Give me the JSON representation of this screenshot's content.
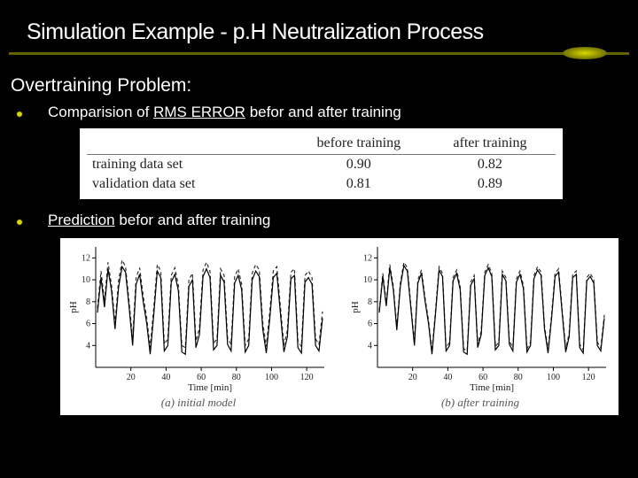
{
  "title": "Simulation Example - p.H Neutralization Process",
  "underline": {
    "color": "#636300",
    "ball_gradient_inner": "#d8d800",
    "ball_gradient_outer": "#717100"
  },
  "section_heading": "Overtraining Problem:",
  "bullets": [
    {
      "pre": "Comparision of ",
      "rms": "RMS ERROR",
      "post": " befor and after training"
    },
    {
      "pre": "",
      "rms": "Prediction",
      "post": " befor and after training"
    }
  ],
  "table": {
    "columns": [
      "",
      "before training",
      "after training"
    ],
    "rows": [
      {
        "label": "training data set",
        "before": "0.90",
        "after": "0.82"
      },
      {
        "label": "validation data set",
        "before": "0.81",
        "after": "0.89"
      }
    ],
    "font_family": "Times New Roman",
    "font_size_pt": 12,
    "text_color": "#222222",
    "bg_color": "#ffffff",
    "border_color": "#777777"
  },
  "charts": {
    "type": "line",
    "background_color": "#ffffff",
    "axis_color": "#000000",
    "xlabel": "Time [min]",
    "ylabel": "pH",
    "label_fontsize_pt": 11,
    "tick_fontsize_pt": 10,
    "xlim": [
      0,
      130
    ],
    "ylim": [
      2,
      13
    ],
    "xticks": [
      20,
      40,
      60,
      80,
      100,
      120
    ],
    "yticks": [
      4,
      6,
      8,
      10,
      12
    ],
    "line_color_solid": "#000000",
    "line_color_dashed": "#333333",
    "line_width": 1.2,
    "panels": [
      {
        "caption": "(a) initial model",
        "solid": [
          [
            1,
            7.0
          ],
          [
            3,
            10.2
          ],
          [
            5,
            7.5
          ],
          [
            7,
            11.0
          ],
          [
            9,
            9.0
          ],
          [
            11,
            5.5
          ],
          [
            13,
            9.3
          ],
          [
            15,
            11.2
          ],
          [
            17,
            10.7
          ],
          [
            19,
            7.5
          ],
          [
            21,
            4.0
          ],
          [
            23,
            9.6
          ],
          [
            25,
            10.5
          ],
          [
            27,
            8.0
          ],
          [
            29,
            6.0
          ],
          [
            31,
            3.2
          ],
          [
            33,
            6.8
          ],
          [
            35,
            10.8
          ],
          [
            37,
            10.2
          ],
          [
            39,
            3.5
          ],
          [
            41,
            4.0
          ],
          [
            43,
            9.8
          ],
          [
            45,
            10.5
          ],
          [
            47,
            9.0
          ],
          [
            49,
            3.4
          ],
          [
            51,
            3.2
          ],
          [
            53,
            9.4
          ],
          [
            55,
            10.0
          ],
          [
            57,
            3.8
          ],
          [
            59,
            5.0
          ],
          [
            61,
            10.3
          ],
          [
            63,
            11.0
          ],
          [
            65,
            10.2
          ],
          [
            67,
            3.6
          ],
          [
            69,
            4.0
          ],
          [
            71,
            10.4
          ],
          [
            73,
            9.8
          ],
          [
            75,
            4.1
          ],
          [
            77,
            3.5
          ],
          [
            79,
            9.7
          ],
          [
            81,
            10.4
          ],
          [
            83,
            9.1
          ],
          [
            85,
            3.4
          ],
          [
            87,
            4.0
          ],
          [
            89,
            10.0
          ],
          [
            91,
            10.8
          ],
          [
            93,
            10.3
          ],
          [
            95,
            5.5
          ],
          [
            97,
            3.3
          ],
          [
            99,
            6.5
          ],
          [
            101,
            10.2
          ],
          [
            103,
            10.6
          ],
          [
            105,
            7.0
          ],
          [
            107,
            3.4
          ],
          [
            109,
            4.8
          ],
          [
            111,
            10.1
          ],
          [
            113,
            10.4
          ],
          [
            115,
            3.8
          ],
          [
            117,
            3.3
          ],
          [
            119,
            9.8
          ],
          [
            121,
            10.2
          ],
          [
            123,
            9.6
          ],
          [
            125,
            4.0
          ],
          [
            127,
            3.5
          ],
          [
            129,
            6.5
          ]
        ],
        "dashed": [
          [
            1,
            7.4
          ],
          [
            3,
            10.8
          ],
          [
            5,
            8.0
          ],
          [
            7,
            11.6
          ],
          [
            9,
            9.5
          ],
          [
            11,
            6.0
          ],
          [
            13,
            9.9
          ],
          [
            15,
            11.8
          ],
          [
            17,
            11.2
          ],
          [
            19,
            8.0
          ],
          [
            21,
            4.6
          ],
          [
            23,
            10.2
          ],
          [
            25,
            11.1
          ],
          [
            27,
            8.5
          ],
          [
            29,
            6.5
          ],
          [
            31,
            3.8
          ],
          [
            33,
            7.4
          ],
          [
            35,
            11.4
          ],
          [
            37,
            10.8
          ],
          [
            39,
            4.1
          ],
          [
            41,
            4.6
          ],
          [
            43,
            10.4
          ],
          [
            45,
            11.1
          ],
          [
            47,
            9.5
          ],
          [
            49,
            4.0
          ],
          [
            51,
            3.8
          ],
          [
            53,
            10.0
          ],
          [
            55,
            10.6
          ],
          [
            57,
            4.4
          ],
          [
            59,
            5.6
          ],
          [
            61,
            10.9
          ],
          [
            63,
            11.6
          ],
          [
            65,
            10.8
          ],
          [
            67,
            4.2
          ],
          [
            69,
            4.6
          ],
          [
            71,
            11.0
          ],
          [
            73,
            10.4
          ],
          [
            75,
            4.7
          ],
          [
            77,
            4.1
          ],
          [
            79,
            10.3
          ],
          [
            81,
            11.0
          ],
          [
            83,
            9.6
          ],
          [
            85,
            4.0
          ],
          [
            87,
            4.6
          ],
          [
            89,
            10.6
          ],
          [
            91,
            11.4
          ],
          [
            93,
            10.9
          ],
          [
            95,
            6.1
          ],
          [
            97,
            3.9
          ],
          [
            99,
            7.1
          ],
          [
            101,
            10.8
          ],
          [
            103,
            11.2
          ],
          [
            105,
            7.6
          ],
          [
            107,
            4.0
          ],
          [
            109,
            5.4
          ],
          [
            111,
            10.7
          ],
          [
            113,
            11.0
          ],
          [
            115,
            4.4
          ],
          [
            117,
            3.9
          ],
          [
            119,
            10.4
          ],
          [
            121,
            10.8
          ],
          [
            123,
            10.2
          ],
          [
            125,
            4.6
          ],
          [
            127,
            4.1
          ],
          [
            129,
            7.1
          ]
        ]
      },
      {
        "caption": "(b) after training",
        "solid": [
          [
            1,
            7.0
          ],
          [
            3,
            10.3
          ],
          [
            5,
            7.6
          ],
          [
            7,
            11.1
          ],
          [
            9,
            9.1
          ],
          [
            11,
            5.4
          ],
          [
            13,
            9.4
          ],
          [
            15,
            11.3
          ],
          [
            17,
            10.8
          ],
          [
            19,
            7.4
          ],
          [
            21,
            4.0
          ],
          [
            23,
            9.7
          ],
          [
            25,
            10.6
          ],
          [
            27,
            8.1
          ],
          [
            29,
            6.0
          ],
          [
            31,
            3.2
          ],
          [
            33,
            6.9
          ],
          [
            35,
            10.9
          ],
          [
            37,
            10.3
          ],
          [
            39,
            3.5
          ],
          [
            41,
            4.0
          ],
          [
            43,
            9.9
          ],
          [
            45,
            10.6
          ],
          [
            47,
            9.1
          ],
          [
            49,
            3.4
          ],
          [
            51,
            3.2
          ],
          [
            53,
            9.5
          ],
          [
            55,
            10.1
          ],
          [
            57,
            3.8
          ],
          [
            59,
            5.0
          ],
          [
            61,
            10.4
          ],
          [
            63,
            11.1
          ],
          [
            65,
            10.3
          ],
          [
            67,
            3.6
          ],
          [
            69,
            4.0
          ],
          [
            71,
            10.5
          ],
          [
            73,
            9.9
          ],
          [
            75,
            4.1
          ],
          [
            77,
            3.5
          ],
          [
            79,
            9.8
          ],
          [
            81,
            10.5
          ],
          [
            83,
            9.2
          ],
          [
            85,
            3.4
          ],
          [
            87,
            4.0
          ],
          [
            89,
            10.1
          ],
          [
            91,
            10.9
          ],
          [
            93,
            10.4
          ],
          [
            95,
            5.5
          ],
          [
            97,
            3.3
          ],
          [
            99,
            6.5
          ],
          [
            101,
            10.3
          ],
          [
            103,
            10.7
          ],
          [
            105,
            7.0
          ],
          [
            107,
            3.4
          ],
          [
            109,
            4.8
          ],
          [
            111,
            10.2
          ],
          [
            113,
            10.5
          ],
          [
            115,
            3.8
          ],
          [
            117,
            3.3
          ],
          [
            119,
            9.9
          ],
          [
            121,
            10.3
          ],
          [
            123,
            9.7
          ],
          [
            125,
            4.0
          ],
          [
            127,
            3.5
          ],
          [
            129,
            6.5
          ]
        ],
        "dashed": [
          [
            1,
            7.2
          ],
          [
            3,
            10.6
          ],
          [
            5,
            7.9
          ],
          [
            7,
            11.4
          ],
          [
            9,
            9.4
          ],
          [
            11,
            5.7
          ],
          [
            13,
            9.7
          ],
          [
            15,
            11.6
          ],
          [
            17,
            11.1
          ],
          [
            19,
            7.7
          ],
          [
            21,
            4.3
          ],
          [
            23,
            10.0
          ],
          [
            25,
            10.9
          ],
          [
            27,
            8.4
          ],
          [
            29,
            6.3
          ],
          [
            31,
            3.5
          ],
          [
            33,
            7.2
          ],
          [
            35,
            11.2
          ],
          [
            37,
            10.6
          ],
          [
            39,
            3.8
          ],
          [
            41,
            4.3
          ],
          [
            43,
            10.2
          ],
          [
            45,
            10.9
          ],
          [
            47,
            9.4
          ],
          [
            49,
            3.7
          ],
          [
            51,
            3.5
          ],
          [
            53,
            9.8
          ],
          [
            55,
            10.4
          ],
          [
            57,
            4.1
          ],
          [
            59,
            5.3
          ],
          [
            61,
            10.7
          ],
          [
            63,
            11.4
          ],
          [
            65,
            10.6
          ],
          [
            67,
            3.9
          ],
          [
            69,
            4.3
          ],
          [
            71,
            10.8
          ],
          [
            73,
            10.2
          ],
          [
            75,
            4.4
          ],
          [
            77,
            3.8
          ],
          [
            79,
            10.1
          ],
          [
            81,
            10.8
          ],
          [
            83,
            9.5
          ],
          [
            85,
            3.7
          ],
          [
            87,
            4.3
          ],
          [
            89,
            10.4
          ],
          [
            91,
            11.2
          ],
          [
            93,
            10.7
          ],
          [
            95,
            5.8
          ],
          [
            97,
            3.6
          ],
          [
            99,
            6.8
          ],
          [
            101,
            10.6
          ],
          [
            103,
            11.0
          ],
          [
            105,
            7.3
          ],
          [
            107,
            3.7
          ],
          [
            109,
            5.1
          ],
          [
            111,
            10.5
          ],
          [
            113,
            10.8
          ],
          [
            115,
            4.1
          ],
          [
            117,
            3.6
          ],
          [
            119,
            10.2
          ],
          [
            121,
            10.6
          ],
          [
            123,
            10.0
          ],
          [
            125,
            4.3
          ],
          [
            127,
            3.8
          ],
          [
            129,
            6.8
          ]
        ]
      }
    ]
  }
}
